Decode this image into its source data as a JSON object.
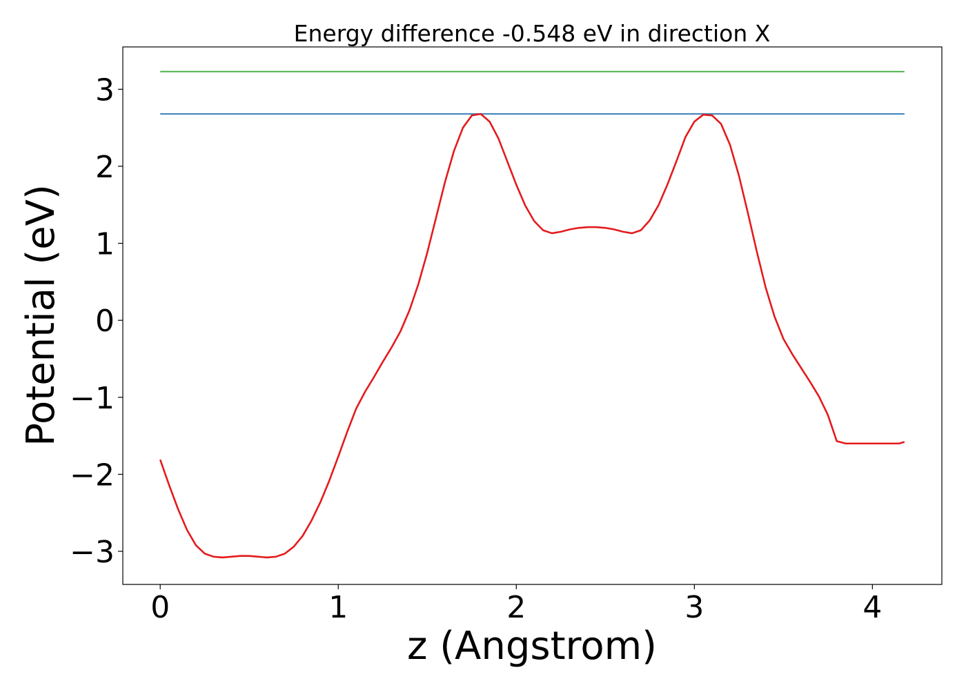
{
  "chart_data": {
    "type": "line",
    "title": "Energy difference -0.548 eV in direction X",
    "xlabel": "z (Angstrom)",
    "ylabel": "Potential (eV)",
    "xlim": [
      -0.21,
      4.39
    ],
    "ylim": [
      -3.43,
      3.55
    ],
    "xticks": [
      0,
      1,
      2,
      3,
      4
    ],
    "yticks": [
      -3,
      -2,
      -1,
      0,
      1,
      2,
      3
    ],
    "xtick_labels": [
      "0",
      "1",
      "2",
      "3",
      "4"
    ],
    "ytick_labels": [
      "−3",
      "−2",
      "−1",
      "0",
      "1",
      "2",
      "3"
    ],
    "grid": false,
    "series": [
      {
        "color": "#4daf4a",
        "x": [
          0,
          4.18
        ],
        "y": [
          3.23,
          3.23
        ]
      },
      {
        "color": "#377eb8",
        "x": [
          0,
          4.18
        ],
        "y": [
          2.68,
          2.68
        ]
      },
      {
        "color": "#e41a1c",
        "x": [
          0.0,
          0.05,
          0.1,
          0.15,
          0.2,
          0.25,
          0.3,
          0.35,
          0.4,
          0.45,
          0.5,
          0.55,
          0.6,
          0.65,
          0.7,
          0.75,
          0.8,
          0.85,
          0.9,
          0.95,
          1.0,
          1.05,
          1.1,
          1.15,
          1.2,
          1.25,
          1.3,
          1.35,
          1.4,
          1.45,
          1.5,
          1.55,
          1.6,
          1.65,
          1.7,
          1.75,
          1.8,
          1.85,
          1.9,
          1.95,
          2.0,
          2.05,
          2.1,
          2.15,
          2.2,
          2.25,
          2.3,
          2.35,
          2.4,
          2.45,
          2.5,
          2.55,
          2.6,
          2.65,
          2.7,
          2.75,
          2.8,
          2.85,
          2.9,
          2.95,
          3.0,
          3.05,
          3.1,
          3.15,
          3.2,
          3.25,
          3.3,
          3.35,
          3.4,
          3.45,
          3.5,
          3.55,
          3.6,
          3.65,
          3.7,
          3.75,
          3.8,
          3.85,
          3.9,
          3.95,
          4.0,
          4.05,
          4.1,
          4.15,
          4.18
        ],
        "y": [
          -1.81,
          -2.14,
          -2.45,
          -2.72,
          -2.92,
          -3.03,
          -3.07,
          -3.08,
          -3.07,
          -3.06,
          -3.06,
          -3.07,
          -3.08,
          -3.07,
          -3.03,
          -2.94,
          -2.8,
          -2.6,
          -2.36,
          -2.08,
          -1.77,
          -1.45,
          -1.15,
          -0.93,
          -0.74,
          -0.54,
          -0.35,
          -0.14,
          0.13,
          0.47,
          0.88,
          1.34,
          1.8,
          2.2,
          2.5,
          2.66,
          2.68,
          2.58,
          2.36,
          2.06,
          1.76,
          1.49,
          1.29,
          1.17,
          1.13,
          1.15,
          1.18,
          1.2,
          1.21,
          1.21,
          1.2,
          1.18,
          1.15,
          1.13,
          1.17,
          1.3,
          1.5,
          1.77,
          2.07,
          2.38,
          2.58,
          2.67,
          2.66,
          2.55,
          2.28,
          1.88,
          1.4,
          0.9,
          0.43,
          0.05,
          -0.24,
          -0.44,
          -0.62,
          -0.8,
          -0.99,
          -1.23,
          -1.57,
          -1.6,
          -1.6,
          -1.6,
          -1.6,
          -1.6,
          -1.6,
          -1.6,
          -1.58
        ]
      }
    ]
  }
}
